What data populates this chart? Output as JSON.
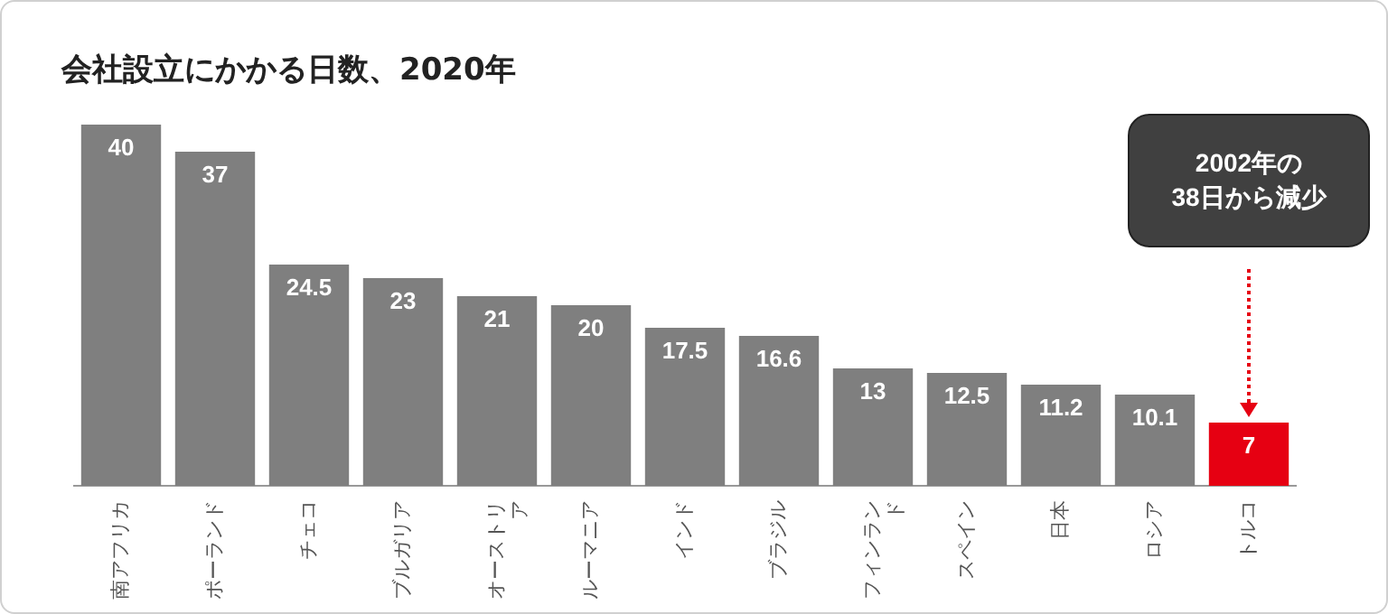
{
  "chart_data": {
    "type": "bar",
    "title": "会社設立にかかる日数、2020年",
    "categories": [
      "南アフリカ",
      "ポーランド",
      "チェコ",
      "ブルガリア",
      "オーストリア",
      "ルーマニア",
      "インド",
      "ブラジル",
      "フィンランド",
      "スペイン",
      "日本",
      "ロシア",
      "トルコ"
    ],
    "values": [
      40,
      37,
      24.5,
      23,
      21,
      20,
      17.5,
      16.6,
      13,
      12.5,
      11.2,
      10.1,
      7
    ],
    "colors": [
      "#7f7f7f",
      "#7f7f7f",
      "#7f7f7f",
      "#7f7f7f",
      "#7f7f7f",
      "#7f7f7f",
      "#7f7f7f",
      "#7f7f7f",
      "#7f7f7f",
      "#7f7f7f",
      "#7f7f7f",
      "#7f7f7f",
      "#e60012"
    ],
    "data_labels": true,
    "tick_labels": "x",
    "annotations": [
      "2002年の\n38日から減少"
    ]
  }
}
